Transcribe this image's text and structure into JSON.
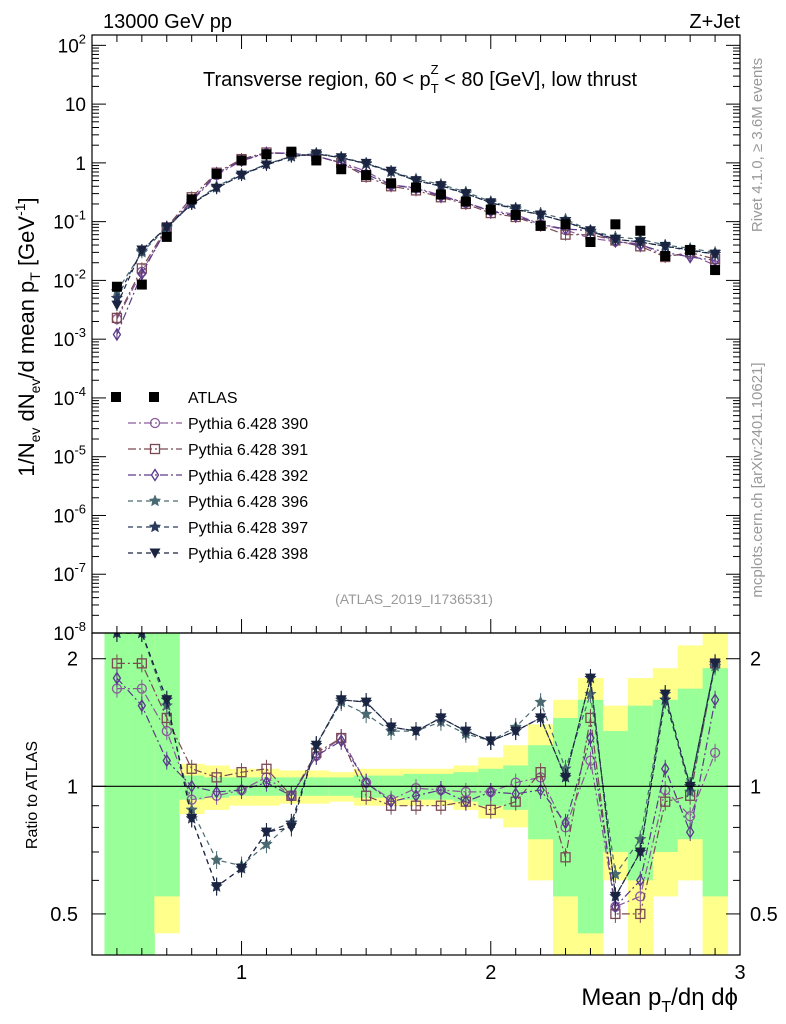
{
  "header": {
    "left": "13000 GeV pp",
    "right": "Z+Jet"
  },
  "side": {
    "rivet": "Rivet 4.1.0, ≥ 3.6M events",
    "mcplots": "mcplots.cern.ch [arXiv:2401.10621]"
  },
  "chart_data": {
    "type": "line",
    "title": "Transverse region, 60 < p_T^Z < 80 [GeV], low thrust",
    "title_parts": {
      "pre": "Transverse region, 60 < p",
      "sub": "T",
      "sup": "Z",
      "post": " < 80 [GeV], low thrust"
    },
    "analysis_id": "(ATLAS_2019_I1736531)",
    "xlabel": "Mean p_T/dη dϕ",
    "ylabel": "1/N_ev dN_ev/d mean p_T [GeV^-1]",
    "ratio_ylabel": "Ratio to ATLAS",
    "xlim": [
      0.4,
      3.0
    ],
    "ylim": [
      1e-08,
      150
    ],
    "ratio_ylim": [
      0.4,
      2.3
    ],
    "x_ticks": [
      1,
      2,
      3
    ],
    "y_ticks": [
      1e-08,
      1e-07,
      1e-06,
      1e-05,
      0.0001,
      0.001,
      0.01,
      0.1,
      1,
      10,
      100
    ],
    "y_tick_labels": [
      {
        "base": "10",
        "exp": "-8"
      },
      {
        "base": "10",
        "exp": "-7"
      },
      {
        "base": "10",
        "exp": "-6"
      },
      {
        "base": "10",
        "exp": "-5"
      },
      {
        "base": "10",
        "exp": "-4"
      },
      {
        "base": "10",
        "exp": "-3"
      },
      {
        "base": "10",
        "exp": "-2"
      },
      {
        "base": "10",
        "exp": "-1"
      },
      {
        "base": "1",
        "exp": ""
      },
      {
        "base": "10",
        "exp": ""
      },
      {
        "base": "10",
        "exp": "2"
      }
    ],
    "ratio_ticks": [
      0.5,
      1,
      2
    ],
    "x": [
      0.5,
      0.6,
      0.7,
      0.8,
      0.9,
      1.0,
      1.1,
      1.2,
      1.3,
      1.4,
      1.5,
      1.6,
      1.7,
      1.8,
      1.9,
      2.0,
      2.1,
      2.2,
      2.3,
      2.4,
      2.5,
      2.6,
      2.7,
      2.8,
      2.9
    ],
    "data": {
      "name": "ATLAS",
      "color": "#000000",
      "values": [
        0.0078,
        0.0085,
        0.055,
        0.24,
        0.65,
        1.1,
        1.4,
        1.55,
        1.1,
        0.78,
        0.62,
        0.45,
        0.38,
        0.29,
        0.22,
        0.16,
        0.13,
        0.085,
        0.09,
        0.045,
        0.09,
        0.07,
        0.026,
        0.033,
        0.015
      ],
      "band_yellow": [
        [
          0.35,
          2.3
        ],
        [
          0.35,
          2.3
        ],
        [
          0.45,
          2.3
        ],
        [
          0.86,
          1.13
        ],
        [
          0.88,
          1.12
        ],
        [
          0.9,
          1.1
        ],
        [
          0.9,
          1.1
        ],
        [
          0.91,
          1.09
        ],
        [
          0.91,
          1.09
        ],
        [
          0.92,
          1.08
        ],
        [
          0.9,
          1.1
        ],
        [
          0.9,
          1.1
        ],
        [
          0.9,
          1.1
        ],
        [
          0.9,
          1.1
        ],
        [
          0.88,
          1.12
        ],
        [
          0.84,
          1.17
        ],
        [
          0.8,
          1.25
        ],
        [
          0.6,
          1.4
        ],
        [
          0.4,
          1.6
        ],
        [
          0.35,
          1.8
        ],
        [
          0.6,
          1.55
        ],
        [
          0.4,
          1.8
        ],
        [
          0.55,
          1.9
        ],
        [
          0.6,
          2.15
        ],
        [
          0.35,
          2.3
        ]
      ],
      "band_green": [
        [
          0.35,
          2.3
        ],
        [
          0.4,
          2.3
        ],
        [
          0.55,
          2.3
        ],
        [
          0.93,
          1.06
        ],
        [
          0.94,
          1.05
        ],
        [
          0.95,
          1.05
        ],
        [
          0.95,
          1.05
        ],
        [
          0.95,
          1.05
        ],
        [
          0.95,
          1.05
        ],
        [
          0.95,
          1.05
        ],
        [
          0.94,
          1.06
        ],
        [
          0.94,
          1.06
        ],
        [
          0.93,
          1.07
        ],
        [
          0.93,
          1.07
        ],
        [
          0.92,
          1.08
        ],
        [
          0.9,
          1.1
        ],
        [
          0.88,
          1.12
        ],
        [
          0.75,
          1.25
        ],
        [
          0.55,
          1.45
        ],
        [
          0.45,
          1.6
        ],
        [
          0.7,
          1.35
        ],
        [
          0.6,
          1.55
        ],
        [
          0.7,
          1.6
        ],
        [
          0.75,
          1.7
        ],
        [
          0.55,
          1.9
        ]
      ]
    },
    "series": [
      {
        "name": "Pythia 6.428 390",
        "color": "#8a5a9a",
        "marker": "circle",
        "dash": "8,3,2,3",
        "values": [
          0.0022,
          0.014,
          0.075,
          0.22,
          0.62,
          1.08,
          1.45,
          1.45,
          1.3,
          1.02,
          0.72,
          0.42,
          0.38,
          0.28,
          0.21,
          0.155,
          0.133,
          0.09,
          0.072,
          0.052,
          0.046,
          0.042,
          0.026,
          0.028,
          0.018
        ],
        "ratio": [
          1.7,
          1.7,
          1.35,
          0.93,
          0.95,
          0.98,
          1.05,
          0.95,
          1.18,
          1.3,
          1.02,
          0.93,
          0.99,
          0.98,
          0.97,
          0.97,
          1.02,
          1.05,
          0.8,
          1.15,
          0.52,
          0.55,
          0.98,
          0.85,
          1.2
        ]
      },
      {
        "name": "Pythia 6.428 391",
        "color": "#7a4a52",
        "marker": "square",
        "dash": "8,3,2,3",
        "values": [
          0.0023,
          0.016,
          0.08,
          0.26,
          0.68,
          1.16,
          1.5,
          1.45,
          1.3,
          1.0,
          0.58,
          0.4,
          0.34,
          0.26,
          0.2,
          0.14,
          0.12,
          0.085,
          0.06,
          0.06,
          0.048,
          0.038,
          0.025,
          0.03,
          0.023
        ],
        "ratio": [
          1.95,
          1.95,
          1.45,
          1.1,
          1.05,
          1.08,
          1.1,
          0.95,
          1.2,
          1.3,
          0.95,
          0.9,
          0.9,
          0.9,
          0.92,
          0.88,
          0.92,
          1.08,
          0.68,
          1.45,
          0.5,
          0.5,
          0.92,
          0.95,
          1.95
        ]
      },
      {
        "name": "Pythia 6.428 392",
        "color": "#5a3a8a",
        "marker": "diamond",
        "dash": "8,3,2,3",
        "values": [
          0.0012,
          0.013,
          0.077,
          0.23,
          0.66,
          1.1,
          1.47,
          1.46,
          1.3,
          1.0,
          0.64,
          0.42,
          0.37,
          0.27,
          0.21,
          0.15,
          0.125,
          0.09,
          0.075,
          0.07,
          0.046,
          0.04,
          0.03,
          0.025,
          0.022
        ],
        "ratio": [
          1.8,
          1.55,
          1.15,
          1.0,
          0.97,
          0.98,
          1.02,
          0.95,
          1.18,
          1.28,
          1.02,
          0.92,
          0.95,
          0.98,
          0.92,
          0.97,
          0.96,
          0.98,
          0.82,
          1.3,
          0.52,
          0.6,
          1.1,
          0.78,
          1.6
        ]
      },
      {
        "name": "Pythia 6.428 396",
        "color": "#4a6a72",
        "marker": "star",
        "dash": "5,4",
        "values": [
          0.0065,
          0.03,
          0.078,
          0.2,
          0.4,
          0.64,
          0.95,
          1.3,
          1.45,
          1.25,
          0.98,
          0.72,
          0.53,
          0.43,
          0.32,
          0.22,
          0.17,
          0.14,
          0.11,
          0.07,
          0.055,
          0.05,
          0.04,
          0.035,
          0.03
        ],
        "ratio": [
          2.3,
          2.3,
          1.55,
          0.88,
          0.67,
          0.65,
          0.73,
          0.82,
          1.25,
          1.58,
          1.48,
          1.35,
          1.35,
          1.42,
          1.33,
          1.28,
          1.38,
          1.58,
          1.1,
          1.65,
          0.62,
          0.75,
          1.65,
          0.97,
          1.92
        ]
      },
      {
        "name": "Pythia 6.428 397",
        "color": "#2a3a5a",
        "marker": "star",
        "dash": "5,4",
        "values": [
          0.005,
          0.032,
          0.082,
          0.2,
          0.38,
          0.62,
          0.95,
          1.28,
          1.42,
          1.22,
          0.96,
          0.7,
          0.5,
          0.4,
          0.3,
          0.21,
          0.16,
          0.13,
          0.1,
          0.068,
          0.05,
          0.045,
          0.038,
          0.032,
          0.028
        ],
        "ratio": [
          2.3,
          2.3,
          1.6,
          0.84,
          0.58,
          0.64,
          0.78,
          0.82,
          1.25,
          1.6,
          1.58,
          1.38,
          1.35,
          1.45,
          1.35,
          1.28,
          1.35,
          1.45,
          1.05,
          1.8,
          0.55,
          0.7,
          1.6,
          1.0,
          1.95
        ]
      },
      {
        "name": "Pythia 6.428 398",
        "color": "#1a2340",
        "marker": "triangle-down",
        "dash": "5,4",
        "values": [
          0.0038,
          0.033,
          0.08,
          0.2,
          0.37,
          0.62,
          0.92,
          1.28,
          1.42,
          1.22,
          0.98,
          0.72,
          0.5,
          0.41,
          0.3,
          0.21,
          0.165,
          0.13,
          0.1,
          0.07,
          0.05,
          0.045,
          0.038,
          0.033,
          0.028
        ],
        "ratio": [
          2.3,
          2.3,
          1.6,
          0.84,
          0.58,
          0.64,
          0.78,
          0.8,
          1.25,
          1.6,
          1.58,
          1.38,
          1.35,
          1.45,
          1.35,
          1.28,
          1.35,
          1.45,
          1.05,
          1.8,
          0.55,
          0.7,
          1.65,
          1.0,
          1.95
        ]
      }
    ]
  }
}
